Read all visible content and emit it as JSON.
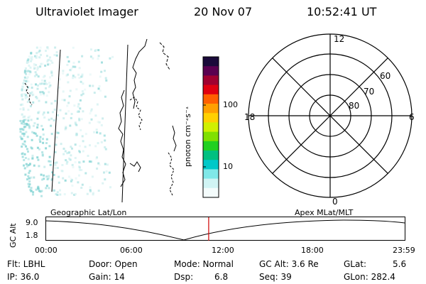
{
  "header": {
    "instrument": "Ultraviolet Imager",
    "date": "20 Nov 07",
    "time": "10:52:41 UT"
  },
  "colorbar": {
    "unit_label": "photon cm⁻²s⁻¹",
    "ticks": [
      "100",
      "10"
    ],
    "colors": [
      "#1a0a3a",
      "#5a0050",
      "#a00030",
      "#e00010",
      "#ff6000",
      "#ffa000",
      "#ffd000",
      "#d0f000",
      "#80e000",
      "#20d020",
      "#00c080",
      "#00c8c8",
      "#80e8e8",
      "#d0f4f4",
      "#f4fcfc"
    ]
  },
  "polar": {
    "mlt_labels": {
      "top": "12",
      "bottom": "0",
      "left": "18",
      "right": "6"
    },
    "lat_labels": [
      "60",
      "70",
      "80"
    ]
  },
  "timeline": {
    "ylabel": "GC Alt",
    "yticks": [
      "9.0",
      "1.8"
    ],
    "left_title": "Geographic Lat/Lon",
    "right_title": "Apex  MLat/MLT",
    "xticks": [
      "00:00",
      "06:00",
      "12:00",
      "18:00",
      "23:59"
    ],
    "current_fraction": 0.4534
  },
  "info": {
    "filter": "Flt: LBHL",
    "ip": "IP: 36.0",
    "door": "Door: Open",
    "gain": "Gain: 14",
    "mode": "Mode: Normal",
    "dsp_label": "Dsp:",
    "dsp_value": "6.8",
    "gc_alt": "GC Alt: 3.6 Re",
    "seq": "Seq: 39",
    "glat_label": "GLat:",
    "glat_value": "5.6",
    "glon": "GLon: 282.4"
  }
}
